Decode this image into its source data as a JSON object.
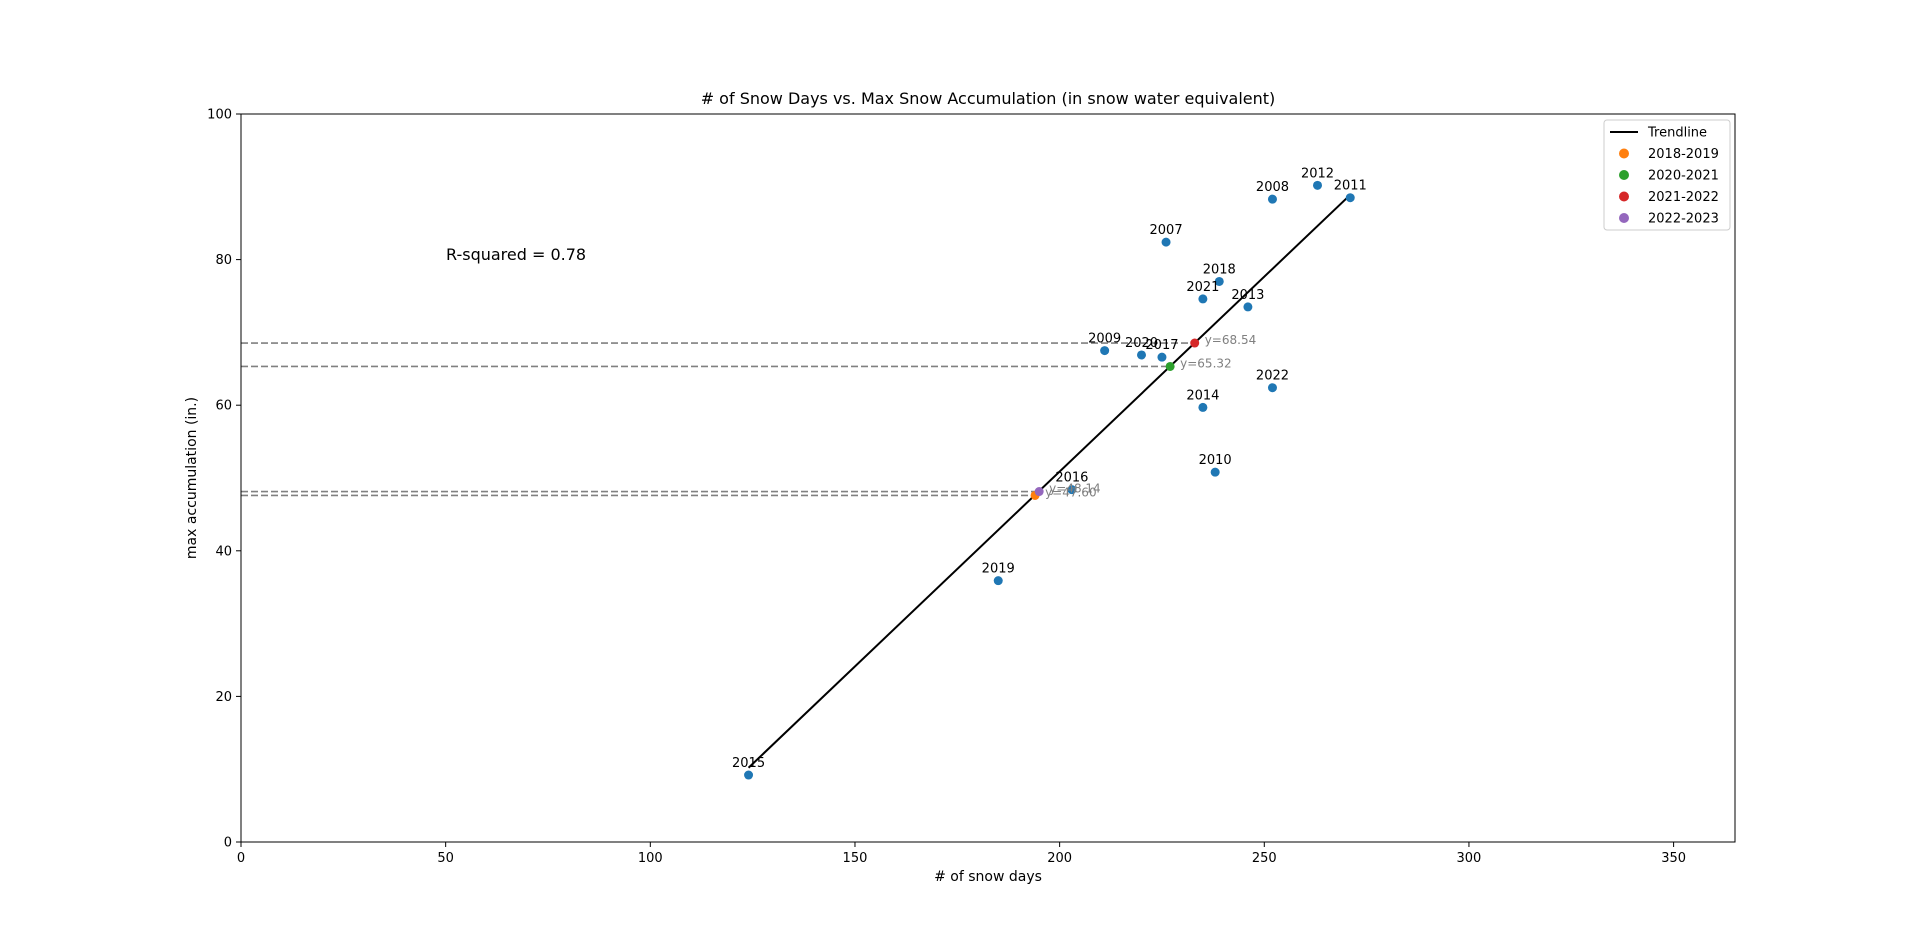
{
  "chart_data": {
    "type": "scatter",
    "title": "# of Snow Days vs. Max Snow Accumulation (in snow water equivalent)",
    "xlabel": "# of snow days",
    "ylabel": "max accumulation (in.)",
    "xlim": [
      0,
      365
    ],
    "ylim": [
      0,
      100
    ],
    "xticks": [
      "0",
      "50",
      "100",
      "150",
      "200",
      "250",
      "300",
      "350"
    ],
    "yticks": [
      "0",
      "20",
      "40",
      "60",
      "80",
      "100"
    ],
    "grid": false,
    "legend_position": "top-right",
    "annotation": "R-squared = 0.78",
    "points_color": "#1f77b4",
    "points": [
      {
        "label": "2007",
        "x": 226,
        "y": 82.4
      },
      {
        "label": "2008",
        "x": 252,
        "y": 88.3
      },
      {
        "label": "2009",
        "x": 211,
        "y": 67.5
      },
      {
        "label": "2010",
        "x": 238,
        "y": 50.8
      },
      {
        "label": "2011",
        "x": 271,
        "y": 88.5
      },
      {
        "label": "2012",
        "x": 263,
        "y": 90.2
      },
      {
        "label": "2013",
        "x": 246,
        "y": 73.5
      },
      {
        "label": "2014",
        "x": 235,
        "y": 59.7
      },
      {
        "label": "2015",
        "x": 124,
        "y": 9.2
      },
      {
        "label": "2016",
        "x": 203,
        "y": 48.4
      },
      {
        "label": "2017",
        "x": 225,
        "y": 66.6
      },
      {
        "label": "2018",
        "x": 239,
        "y": 77.0
      },
      {
        "label": "2019",
        "x": 185,
        "y": 35.9
      },
      {
        "label": "2020",
        "x": 220,
        "y": 66.9
      },
      {
        "label": "2021",
        "x": 235,
        "y": 74.6
      },
      {
        "label": "2022",
        "x": 252,
        "y": 62.4
      }
    ],
    "trendline": {
      "name": "Trendline",
      "color": "#000000",
      "x": [
        124,
        271
      ],
      "y": [
        10.2,
        88.9
      ]
    },
    "predictions": [
      {
        "name": "2018-2019",
        "color": "#ff7f0e",
        "x": 194,
        "y": 47.6,
        "label": "y=47.60"
      },
      {
        "name": "2020-2021",
        "color": "#2ca02c",
        "x": 227,
        "y": 65.32,
        "label": "y=65.32"
      },
      {
        "name": "2021-2022",
        "color": "#d62728",
        "x": 233,
        "y": 68.54,
        "label": "y=68.54"
      },
      {
        "name": "2022-2023",
        "color": "#9467bd",
        "x": 195,
        "y": 48.14,
        "label": "y=48.14"
      }
    ]
  }
}
